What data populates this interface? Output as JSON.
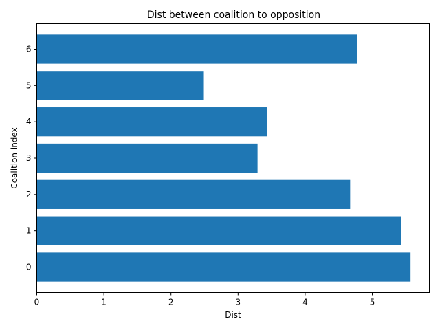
{
  "chart_data": {
    "type": "bar",
    "orientation": "horizontal",
    "title": "Dist between coalition to opposition",
    "xlabel": "Dist",
    "ylabel": "Coalition index",
    "categories": [
      "0",
      "1",
      "2",
      "3",
      "4",
      "5",
      "6"
    ],
    "values": [
      5.57,
      5.43,
      4.67,
      3.29,
      3.43,
      2.49,
      4.77
    ],
    "xlim": [
      0,
      5.85
    ],
    "xticks": [
      "0",
      "1",
      "2",
      "3",
      "4",
      "5"
    ],
    "grid": false,
    "legend": "none",
    "bar_color": "#1f77b4"
  }
}
